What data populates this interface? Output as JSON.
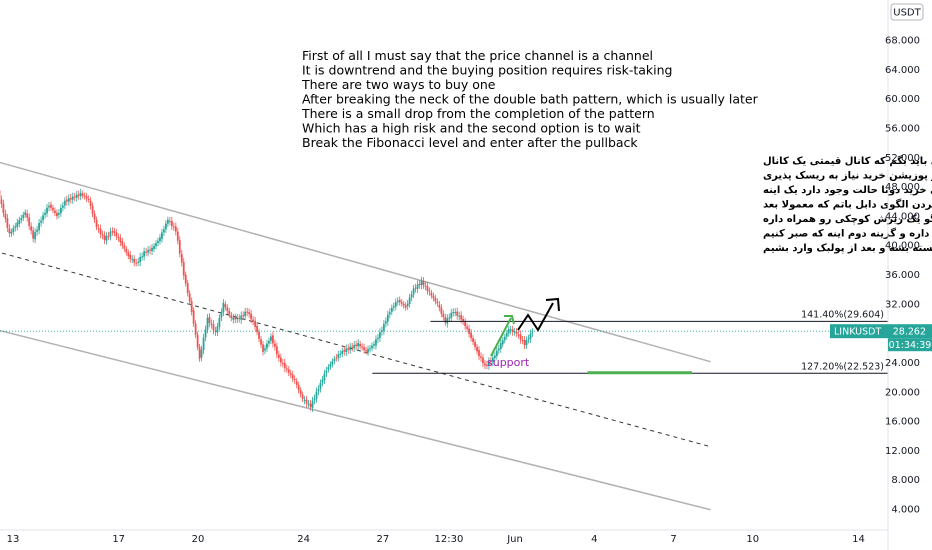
{
  "chart_data": {
    "type": "candlestick",
    "currency_label": "USDT",
    "y_axis_top_partial": "7",
    "y_ticks": [
      68,
      64,
      60,
      56,
      52,
      48,
      44,
      40,
      36,
      32,
      28,
      24,
      20,
      16,
      12,
      8,
      4
    ],
    "y_tick_labels": [
      "68.000",
      "64.000",
      "60.000",
      "56.000",
      "52.000",
      "48.000",
      "44.000",
      "40.000",
      "36.000",
      "32.000",
      "28.000",
      "24.000",
      "20.000",
      "16.000",
      "12.000",
      "8.000",
      "4.000"
    ],
    "x_ticks": [
      {
        "label": "13",
        "day": 13
      },
      {
        "label": "17",
        "day": 17
      },
      {
        "label": "20",
        "day": 20
      },
      {
        "label": "24",
        "day": 24
      },
      {
        "label": "27",
        "day": 27
      },
      {
        "label": "12:30",
        "day": 29.5
      },
      {
        "label": "Jun",
        "day": 32
      },
      {
        "label": "4",
        "day": 35
      },
      {
        "label": "7",
        "day": 38
      },
      {
        "label": "10",
        "day": 41
      },
      {
        "label": "14",
        "day": 45
      }
    ],
    "price_series": [
      [
        12,
        50.5
      ],
      [
        12.3,
        49.2
      ],
      [
        12.6,
        45.5
      ],
      [
        12.9,
        41.5
      ],
      [
        13.2,
        43
      ],
      [
        13.5,
        44.5
      ],
      [
        13.8,
        41
      ],
      [
        14.1,
        43.5
      ],
      [
        14.4,
        45.5
      ],
      [
        14.7,
        44
      ],
      [
        15,
        46
      ],
      [
        15.3,
        46.5
      ],
      [
        15.6,
        47
      ],
      [
        15.9,
        46.2
      ],
      [
        16.2,
        42.5
      ],
      [
        16.5,
        40.8
      ],
      [
        16.8,
        42
      ],
      [
        17.1,
        40.5
      ],
      [
        17.4,
        38.5
      ],
      [
        17.7,
        37.5
      ],
      [
        18,
        39
      ],
      [
        18.3,
        39.5
      ],
      [
        18.6,
        41
      ],
      [
        18.9,
        43.5
      ],
      [
        19.2,
        42
      ],
      [
        19.5,
        36
      ],
      [
        19.8,
        31
      ],
      [
        20.1,
        24.5
      ],
      [
        20.4,
        30
      ],
      [
        20.7,
        28
      ],
      [
        21,
        32
      ],
      [
        21.3,
        30
      ],
      [
        21.6,
        30
      ],
      [
        21.9,
        31
      ],
      [
        22.2,
        29
      ],
      [
        22.5,
        25.5
      ],
      [
        22.8,
        27.5
      ],
      [
        23.1,
        24.5
      ],
      [
        23.4,
        23
      ],
      [
        23.7,
        21.5
      ],
      [
        24,
        19
      ],
      [
        24.3,
        18
      ],
      [
        24.6,
        20.5
      ],
      [
        24.9,
        23
      ],
      [
        25.2,
        24.5
      ],
      [
        25.5,
        25.5
      ],
      [
        25.8,
        26
      ],
      [
        26.1,
        26.5
      ],
      [
        26.4,
        25.5
      ],
      [
        26.7,
        26.5
      ],
      [
        27,
        28.5
      ],
      [
        27.3,
        31
      ],
      [
        27.6,
        32.5
      ],
      [
        27.9,
        31.5
      ],
      [
        28.2,
        34
      ],
      [
        28.5,
        35
      ],
      [
        28.8,
        33.5
      ],
      [
        29.1,
        32
      ],
      [
        29.4,
        29.5
      ],
      [
        29.7,
        31
      ],
      [
        30,
        30
      ],
      [
        30.3,
        28
      ],
      [
        30.6,
        25.5
      ],
      [
        30.9,
        23.5
      ],
      [
        31.2,
        24.5
      ],
      [
        31.5,
        26.5
      ],
      [
        31.8,
        28.5
      ],
      [
        32.1,
        28
      ],
      [
        32.4,
        26.5
      ],
      [
        32.7,
        28.262
      ]
    ],
    "last_price": {
      "symbol": "LINKUSDT",
      "value": "28.262",
      "countdown": "01:34:39",
      "y": 28.262
    },
    "fib_levels": [
      {
        "label": "141.40%(29.604)",
        "value": 29.604,
        "from_day": 28.8
      },
      {
        "label": "127.20%(22.523)",
        "value": 22.523,
        "from_day": 26.6
      }
    ],
    "support_label": "support",
    "support_line": {
      "from_day": 35.5,
      "to_day": 38.7,
      "value": 22.6
    },
    "channel": {
      "upper": [
        [
          12,
          51.8
        ],
        [
          39.4,
          24.1
        ]
      ],
      "mid": [
        [
          12,
          39.5
        ],
        [
          39.4,
          12.5
        ]
      ],
      "lower": [
        [
          12,
          28.8
        ],
        [
          39.4,
          3.9
        ]
      ]
    },
    "note_english": [
      "First of all I must say that the price channel is a channel",
      "It is downtrend and the buying position requires risk-taking",
      "There are two ways to buy one",
      "After breaking the neck of the double bath pattern, which is usually later",
      "There is a small drop from the completion of the pattern",
      "Which has a high risk and the second option is to wait",
      "Break the Fibonacci level and enter after the pullback"
    ],
    "note_persian": [
      "قبل از هر چیزی باید بگم که کانال قیمتی یک کانال",
      "نزولی است و پوزیشن خرید نیاز به ریسک پذیری",
      "دارد و برای خرید دوتا حالت وجود دارد یک اینه",
      "بعد از شکست گردن الگوی دابل باتم که معمولا بعد",
      "از تکمیل شدن الگو یک ریزش کوچکی رو همراه داره",
      "که ریسک بالایی داره و گزینه دوم اینه که صبر کنیم",
      "تراز فیبوناچی شکسته بشه و بعد از پولبک وارد بشیم"
    ],
    "colors": {
      "up": "#26a69a",
      "down": "#ef5350",
      "channel": "#b2b2b2",
      "support_line": "#4caf50",
      "arrow_green": "#4caf50",
      "support_text": "#9c27b0",
      "tag_bg": "#26a69a"
    }
  }
}
